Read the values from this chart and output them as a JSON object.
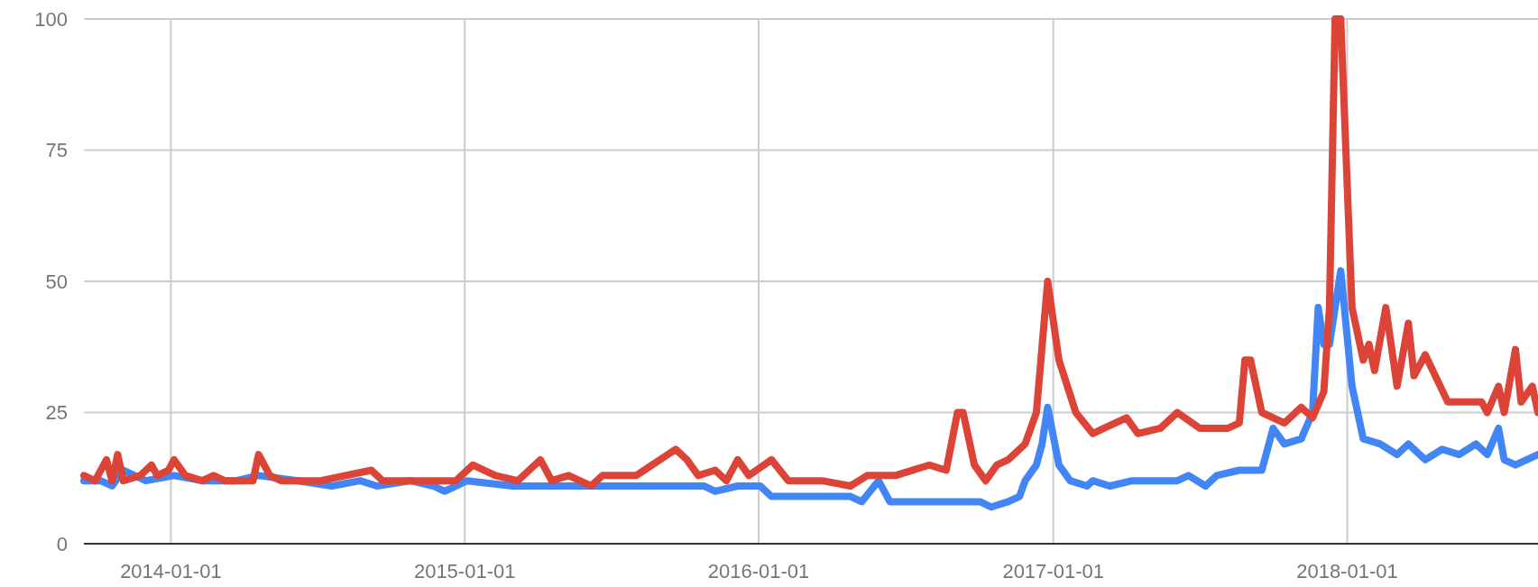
{
  "chart_data": {
    "type": "line",
    "xlim": [
      "2013-09-15",
      "2018-08-26"
    ],
    "ylim": [
      0,
      100
    ],
    "yticks": [
      0,
      25,
      50,
      75,
      100
    ],
    "xticks": [
      "2014-01-01",
      "2015-01-01",
      "2016-01-01",
      "2017-01-01",
      "2018-01-01"
    ],
    "grid": true,
    "line_style": "solid",
    "series": [
      {
        "color": "#4285f4",
        "x": [
          "2013-09-15",
          "2013-10-06",
          "2013-10-20",
          "2013-11-03",
          "2013-12-01",
          "2014-01-05",
          "2014-02-09",
          "2014-03-23",
          "2014-04-20",
          "2014-06-08",
          "2014-07-20",
          "2014-08-24",
          "2014-09-14",
          "2014-10-26",
          "2014-11-23",
          "2014-12-07",
          "2015-01-04",
          "2015-03-01",
          "2015-05-03",
          "2015-07-05",
          "2015-09-06",
          "2015-10-25",
          "2015-11-08",
          "2015-12-06",
          "2016-01-03",
          "2016-01-17",
          "2016-03-06",
          "2016-04-24",
          "2016-05-08",
          "2016-05-29",
          "2016-06-12",
          "2016-08-07",
          "2016-10-02",
          "2016-10-16",
          "2016-11-06",
          "2016-11-20",
          "2016-11-27",
          "2016-12-11",
          "2016-12-18",
          "2016-12-25",
          "2017-01-08",
          "2017-01-22",
          "2017-02-12",
          "2017-02-19",
          "2017-03-12",
          "2017-04-09",
          "2017-06-04",
          "2017-06-18",
          "2017-07-09",
          "2017-07-23",
          "2017-08-20",
          "2017-09-17",
          "2017-10-01",
          "2017-10-15",
          "2017-11-05",
          "2017-11-19",
          "2017-11-26",
          "2017-12-03",
          "2017-12-10",
          "2017-12-24",
          "2018-01-07",
          "2018-01-21",
          "2018-02-11",
          "2018-03-04",
          "2018-03-18",
          "2018-04-08",
          "2018-04-29",
          "2018-05-20",
          "2018-06-10",
          "2018-06-24",
          "2018-07-08",
          "2018-07-15",
          "2018-07-29",
          "2018-08-26"
        ],
        "values": [
          12,
          12,
          11,
          14,
          12,
          13,
          12,
          12,
          13,
          12,
          11,
          12,
          11,
          12,
          11,
          10,
          12,
          11,
          11,
          11,
          11,
          11,
          10,
          11,
          11,
          9,
          9,
          9,
          8,
          12,
          8,
          8,
          8,
          7,
          8,
          9,
          12,
          15,
          19,
          26,
          15,
          12,
          11,
          12,
          11,
          12,
          12,
          13,
          11,
          13,
          14,
          14,
          22,
          19,
          20,
          25,
          45,
          38,
          38,
          52,
          30,
          20,
          19,
          17,
          19,
          16,
          18,
          17,
          19,
          17,
          22,
          16,
          15,
          17
        ]
      },
      {
        "color": "#db4437",
        "x": [
          "2013-09-15",
          "2013-09-29",
          "2013-10-13",
          "2013-10-20",
          "2013-10-27",
          "2013-11-03",
          "2013-11-24",
          "2013-12-08",
          "2013-12-15",
          "2013-12-29",
          "2014-01-05",
          "2014-01-19",
          "2014-02-09",
          "2014-02-23",
          "2014-03-09",
          "2014-04-13",
          "2014-04-20",
          "2014-05-04",
          "2014-05-18",
          "2014-07-06",
          "2014-09-07",
          "2014-09-21",
          "2014-12-21",
          "2015-01-11",
          "2015-02-08",
          "2015-03-08",
          "2015-04-05",
          "2015-04-19",
          "2015-05-10",
          "2015-06-07",
          "2015-06-21",
          "2015-08-02",
          "2015-09-20",
          "2015-10-04",
          "2015-10-18",
          "2015-11-08",
          "2015-11-22",
          "2015-12-06",
          "2015-12-20",
          "2016-01-17",
          "2016-02-07",
          "2016-03-20",
          "2016-04-24",
          "2016-05-15",
          "2016-06-19",
          "2016-07-31",
          "2016-08-21",
          "2016-09-04",
          "2016-09-11",
          "2016-09-25",
          "2016-10-09",
          "2016-10-23",
          "2016-11-06",
          "2016-11-27",
          "2016-12-11",
          "2016-12-25",
          "2017-01-08",
          "2017-01-29",
          "2017-02-19",
          "2017-03-05",
          "2017-04-02",
          "2017-04-16",
          "2017-05-14",
          "2017-06-04",
          "2017-07-02",
          "2017-08-06",
          "2017-08-20",
          "2017-08-27",
          "2017-09-03",
          "2017-09-17",
          "2017-10-15",
          "2017-11-05",
          "2017-11-19",
          "2017-12-03",
          "2017-12-10",
          "2017-12-17",
          "2017-12-24",
          "2018-01-07",
          "2018-01-21",
          "2018-01-28",
          "2018-02-04",
          "2018-02-18",
          "2018-03-04",
          "2018-03-18",
          "2018-03-25",
          "2018-04-08",
          "2018-05-06",
          "2018-06-17",
          "2018-06-24",
          "2018-07-08",
          "2018-07-15",
          "2018-07-29",
          "2018-08-05",
          "2018-08-19",
          "2018-08-26"
        ],
        "values": [
          13,
          12,
          16,
          12,
          17,
          12,
          13,
          15,
          13,
          14,
          16,
          13,
          12,
          13,
          12,
          12,
          17,
          13,
          12,
          12,
          14,
          12,
          12,
          15,
          13,
          12,
          16,
          12,
          13,
          11,
          13,
          13,
          18,
          16,
          13,
          14,
          12,
          16,
          13,
          16,
          12,
          12,
          11,
          13,
          13,
          15,
          14,
          25,
          25,
          15,
          12,
          15,
          16,
          19,
          25,
          50,
          35,
          25,
          21,
          22,
          24,
          21,
          22,
          25,
          22,
          22,
          23,
          35,
          35,
          25,
          23,
          26,
          24,
          29,
          45,
          100,
          100,
          45,
          35,
          38,
          33,
          45,
          30,
          42,
          32,
          36,
          27,
          27,
          25,
          30,
          25,
          37,
          27,
          30,
          25
        ]
      }
    ]
  }
}
